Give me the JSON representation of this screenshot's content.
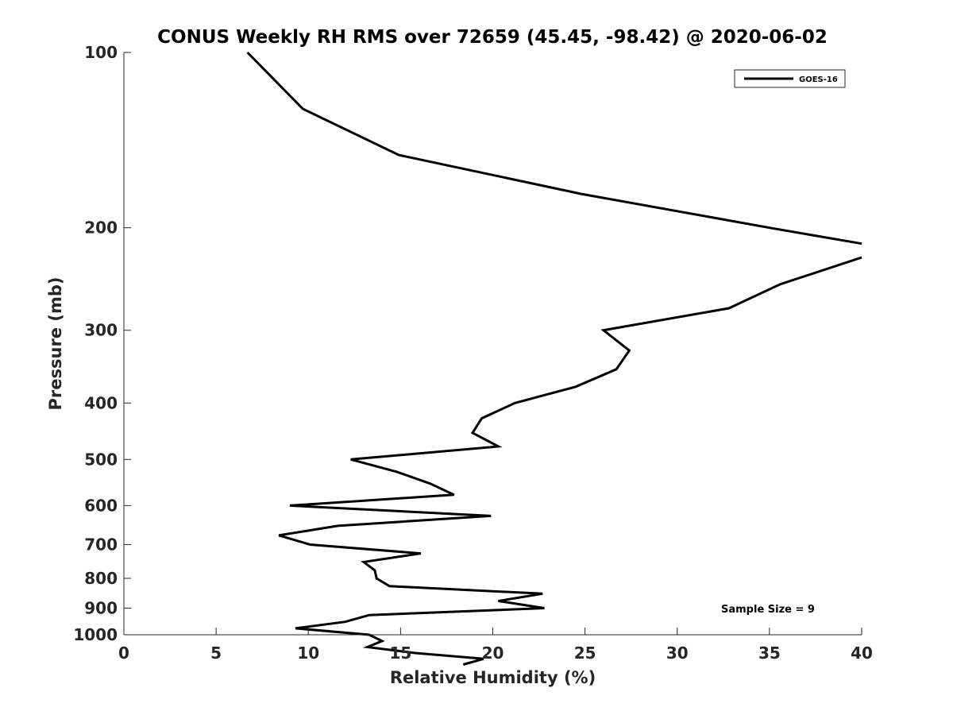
{
  "chart_data": {
    "type": "line",
    "title": "CONUS Weekly RH RMS over 72659 (45.45, -98.42) @ 2020-06-02",
    "xlabel": "Relative Humidity (%)",
    "ylabel": "Pressure (mb)",
    "xlim": [
      0,
      40
    ],
    "ylim": [
      1000,
      100
    ],
    "yscale": "log",
    "y_reversed": true,
    "grid": false,
    "legend_position": "top-right",
    "x_ticks": [
      0,
      5,
      10,
      15,
      20,
      25,
      30,
      35,
      40
    ],
    "x_tick_labels": [
      "0",
      "5",
      "10",
      "15",
      "20",
      "25",
      "30",
      "35",
      "40"
    ],
    "y_ticks": [
      100,
      200,
      300,
      400,
      500,
      600,
      700,
      800,
      900,
      1000
    ],
    "y_tick_labels": [
      "100",
      "200",
      "300",
      "400",
      "500",
      "600",
      "700",
      "800",
      "900",
      "1000"
    ],
    "annotation": "Sample Size = 9",
    "series": [
      {
        "name": "GOES-16",
        "color": "#000000",
        "segments": [
          [
            {
              "x": 6.7,
              "y": 100
            },
            {
              "x": 9.7,
              "y": 125
            },
            {
              "x": 14.9,
              "y": 150
            },
            {
              "x": 24.8,
              "y": 175
            },
            {
              "x": 35.0,
              "y": 200
            },
            {
              "x": 40.0,
              "y": 213
            }
          ],
          [
            {
              "x": 40.0,
              "y": 225
            },
            {
              "x": 35.6,
              "y": 250
            },
            {
              "x": 32.8,
              "y": 275
            },
            {
              "x": 26.0,
              "y": 300
            },
            {
              "x": 27.4,
              "y": 325
            },
            {
              "x": 26.7,
              "y": 350
            },
            {
              "x": 24.5,
              "y": 375
            },
            {
              "x": 21.2,
              "y": 400
            },
            {
              "x": 19.4,
              "y": 425
            },
            {
              "x": 18.9,
              "y": 450
            },
            {
              "x": 20.3,
              "y": 475
            },
            {
              "x": 12.3,
              "y": 500
            },
            {
              "x": 14.8,
              "y": 525
            },
            {
              "x": 16.6,
              "y": 550
            },
            {
              "x": 17.9,
              "y": 575
            },
            {
              "x": 9.0,
              "y": 600
            },
            {
              "x": 19.9,
              "y": 625
            },
            {
              "x": 11.6,
              "y": 650
            },
            {
              "x": 8.4,
              "y": 675
            },
            {
              "x": 10.1,
              "y": 700
            },
            {
              "x": 16.1,
              "y": 725
            },
            {
              "x": 13.0,
              "y": 750
            },
            {
              "x": 13.6,
              "y": 775
            },
            {
              "x": 13.7,
              "y": 800
            },
            {
              "x": 14.4,
              "y": 825
            },
            {
              "x": 22.7,
              "y": 850
            },
            {
              "x": 20.3,
              "y": 875
            },
            {
              "x": 22.8,
              "y": 900
            },
            {
              "x": 13.3,
              "y": 925
            },
            {
              "x": 12.0,
              "y": 950
            },
            {
              "x": 9.3,
              "y": 975
            },
            {
              "x": 13.3,
              "y": 1000
            },
            {
              "x": 14.0,
              "y": 1025
            },
            {
              "x": 13.2,
              "y": 1050
            },
            {
              "x": 15.8,
              "y": 1075
            },
            {
              "x": 19.5,
              "y": 1100
            },
            {
              "x": 18.4,
              "y": 1125
            }
          ]
        ]
      }
    ]
  }
}
